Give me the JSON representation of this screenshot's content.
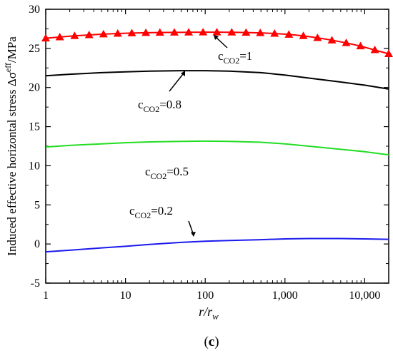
{
  "chart_data": {
    "type": "line",
    "x_scale": "log",
    "xlim": [
      1,
      20000
    ],
    "ylim": [
      -5,
      30
    ],
    "x_ticks": [
      1,
      10,
      100,
      1000,
      10000
    ],
    "x_tick_labels": [
      "1",
      "10",
      "100",
      "1,000",
      "10,000"
    ],
    "y_ticks": [
      -5,
      0,
      5,
      10,
      15,
      20,
      25,
      30
    ],
    "y_tick_labels": [
      "-5",
      "0",
      "5",
      "10",
      "15",
      "20",
      "25",
      "30"
    ],
    "ylabel": {
      "main": "Induced effective horizontal stress Δσ",
      "sup": "eff",
      "tail": "/MPa"
    },
    "xlabel": {
      "r": "r",
      "slash": "/r",
      "sub": "w"
    },
    "caption": {
      "open": "(",
      "letter": "c",
      "close": ")"
    },
    "series": [
      {
        "color": "#ff0000",
        "marker": "triangle",
        "x": [
          1,
          1.5,
          2.3,
          3.5,
          5.3,
          8,
          12,
          18,
          27,
          41,
          62,
          94,
          140,
          215,
          325,
          490,
          740,
          1120,
          1700,
          2560,
          3880,
          5860,
          8860,
          13400,
          20000
        ],
        "y": [
          26.3,
          26.45,
          26.6,
          26.72,
          26.82,
          26.9,
          26.96,
          27.0,
          27.03,
          27.05,
          27.06,
          27.07,
          27.07,
          27.06,
          27.03,
          26.98,
          26.9,
          26.78,
          26.6,
          26.35,
          26.05,
          25.7,
          25.3,
          24.8,
          24.3
        ],
        "annotation": {
          "prefix": "c",
          "sub": "CO2",
          "value": "=1"
        }
      },
      {
        "color": "#000000",
        "marker": "none",
        "x": [
          1,
          2,
          5,
          10,
          20,
          50,
          100,
          200,
          500,
          1000,
          2000,
          5000,
          10000,
          20000
        ],
        "y": [
          21.5,
          21.7,
          21.9,
          22.0,
          22.1,
          22.15,
          22.15,
          22.1,
          21.9,
          21.6,
          21.2,
          20.7,
          20.3,
          19.8
        ],
        "annotation": {
          "prefix": "c",
          "sub": "CO2",
          "value": "=0.8"
        }
      },
      {
        "color": "#22dd22",
        "marker": "none",
        "x": [
          1,
          2,
          5,
          10,
          20,
          50,
          100,
          200,
          500,
          1000,
          2000,
          5000,
          10000,
          20000
        ],
        "y": [
          12.4,
          12.6,
          12.8,
          12.95,
          13.05,
          13.12,
          13.15,
          13.12,
          13.0,
          12.8,
          12.5,
          12.1,
          11.8,
          11.4
        ],
        "annotation": {
          "prefix": "c",
          "sub": "CO2",
          "value": "=0.5"
        }
      },
      {
        "color": "#1a1aee",
        "marker": "none",
        "x": [
          1,
          2,
          5,
          10,
          20,
          50,
          100,
          200,
          500,
          1000,
          2000,
          5000,
          10000,
          20000
        ],
        "y": [
          -1.0,
          -0.8,
          -0.5,
          -0.3,
          -0.05,
          0.2,
          0.35,
          0.45,
          0.55,
          0.65,
          0.7,
          0.7,
          0.65,
          0.6
        ],
        "annotation": {
          "prefix": "c",
          "sub": "CO2",
          "value": "=0.2"
        }
      }
    ]
  }
}
